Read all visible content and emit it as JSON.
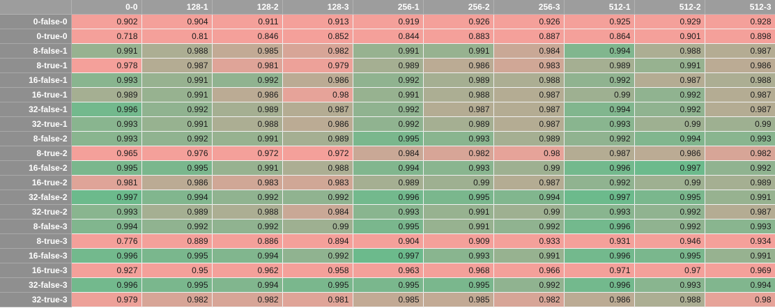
{
  "sheet": {
    "corner": "",
    "columns": [
      "0-0",
      "128-1",
      "128-2",
      "128-3",
      "256-1",
      "256-2",
      "256-3",
      "512-1",
      "512-2",
      "512-3"
    ],
    "color_scale": {
      "low": "#f4a09a",
      "high": "#6cba8c",
      "min": 0.978,
      "max": 0.997
    },
    "rows": [
      {
        "label": "0-false-0",
        "values": [
          "0.902",
          "0.904",
          "0.911",
          "0.913",
          "0.919",
          "0.926",
          "0.926",
          "0.925",
          "0.929",
          "0.928"
        ]
      },
      {
        "label": "0-true-0",
        "values": [
          "0.718",
          "0.81",
          "0.846",
          "0.852",
          "0.844",
          "0.883",
          "0.887",
          "0.864",
          "0.901",
          "0.898"
        ]
      },
      {
        "label": "8-false-1",
        "values": [
          "0.991",
          "0.988",
          "0.985",
          "0.982",
          "0.991",
          "0.991",
          "0.984",
          "0.994",
          "0.988",
          "0.987"
        ]
      },
      {
        "label": "8-true-1",
        "values": [
          "0.978",
          "0.987",
          "0.981",
          "0.979",
          "0.989",
          "0.986",
          "0.983",
          "0.989",
          "0.991",
          "0.986"
        ]
      },
      {
        "label": "16-false-1",
        "values": [
          "0.993",
          "0.991",
          "0.992",
          "0.986",
          "0.992",
          "0.989",
          "0.988",
          "0.992",
          "0.987",
          "0.988"
        ]
      },
      {
        "label": "16-true-1",
        "values": [
          "0.989",
          "0.991",
          "0.986",
          "0.98",
          "0.991",
          "0.988",
          "0.987",
          "0.99",
          "0.992",
          "0.987"
        ]
      },
      {
        "label": "32-false-1",
        "values": [
          "0.996",
          "0.992",
          "0.989",
          "0.987",
          "0.992",
          "0.987",
          "0.987",
          "0.994",
          "0.992",
          "0.987"
        ]
      },
      {
        "label": "32-true-1",
        "values": [
          "0.993",
          "0.991",
          "0.988",
          "0.986",
          "0.992",
          "0.989",
          "0.987",
          "0.993",
          "0.99",
          "0.99"
        ]
      },
      {
        "label": "8-false-2",
        "values": [
          "0.993",
          "0.992",
          "0.991",
          "0.989",
          "0.995",
          "0.993",
          "0.989",
          "0.992",
          "0.994",
          "0.993"
        ]
      },
      {
        "label": "8-true-2",
        "values": [
          "0.965",
          "0.976",
          "0.972",
          "0.972",
          "0.984",
          "0.982",
          "0.98",
          "0.987",
          "0.986",
          "0.982"
        ]
      },
      {
        "label": "16-false-2",
        "values": [
          "0.995",
          "0.995",
          "0.991",
          "0.988",
          "0.994",
          "0.993",
          "0.99",
          "0.996",
          "0.997",
          "0.992"
        ]
      },
      {
        "label": "16-true-2",
        "values": [
          "0.981",
          "0.986",
          "0.983",
          "0.983",
          "0.989",
          "0.99",
          "0.987",
          "0.992",
          "0.99",
          "0.989"
        ]
      },
      {
        "label": "32-false-2",
        "values": [
          "0.997",
          "0.994",
          "0.992",
          "0.992",
          "0.996",
          "0.995",
          "0.994",
          "0.997",
          "0.995",
          "0.991"
        ]
      },
      {
        "label": "32-true-2",
        "values": [
          "0.993",
          "0.989",
          "0.988",
          "0.984",
          "0.993",
          "0.991",
          "0.99",
          "0.993",
          "0.992",
          "0.987"
        ]
      },
      {
        "label": "8-false-3",
        "values": [
          "0.994",
          "0.992",
          "0.992",
          "0.99",
          "0.995",
          "0.991",
          "0.992",
          "0.996",
          "0.992",
          "0.993"
        ]
      },
      {
        "label": "8-true-3",
        "values": [
          "0.776",
          "0.889",
          "0.886",
          "0.894",
          "0.904",
          "0.909",
          "0.933",
          "0.931",
          "0.946",
          "0.934"
        ]
      },
      {
        "label": "16-false-3",
        "values": [
          "0.996",
          "0.995",
          "0.994",
          "0.992",
          "0.997",
          "0.993",
          "0.991",
          "0.996",
          "0.995",
          "0.991"
        ]
      },
      {
        "label": "16-true-3",
        "values": [
          "0.927",
          "0.95",
          "0.962",
          "0.958",
          "0.963",
          "0.968",
          "0.966",
          "0.971",
          "0.97",
          "0.969"
        ]
      },
      {
        "label": "32-false-3",
        "values": [
          "0.996",
          "0.995",
          "0.994",
          "0.995",
          "0.995",
          "0.995",
          "0.992",
          "0.996",
          "0.993",
          "0.994"
        ]
      },
      {
        "label": "32-true-3",
        "values": [
          "0.979",
          "0.982",
          "0.982",
          "0.981",
          "0.985",
          "0.985",
          "0.982",
          "0.986",
          "0.988",
          "0.98"
        ]
      }
    ]
  }
}
